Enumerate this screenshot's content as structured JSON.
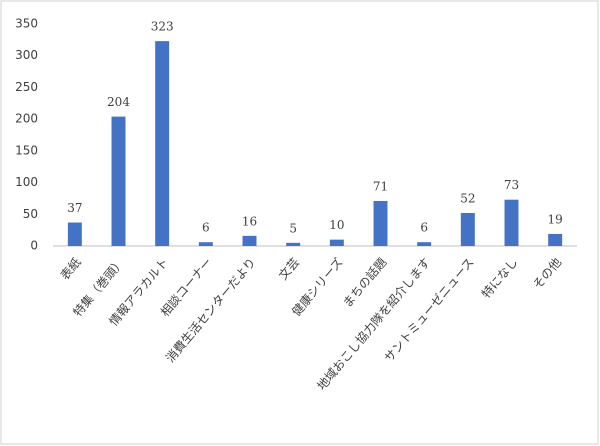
{
  "chart_data": {
    "type": "bar",
    "categories": [
      "表紙",
      "特集（巻頭）",
      "情報アラカルト",
      "相談コーナー",
      "消費生活センターだより",
      "文芸",
      "健康シリーズ",
      "まちの話題",
      "地域おこし協力隊を紹介します",
      "サントミューゼニュース",
      "特になし",
      "その他"
    ],
    "values": [
      37,
      204,
      323,
      6,
      16,
      5,
      10,
      71,
      6,
      52,
      73,
      19
    ],
    "color": "#4472c4",
    "ylim": [
      0,
      350
    ],
    "yticks": [
      0,
      50,
      100,
      150,
      200,
      250,
      300,
      350
    ],
    "grid": false
  }
}
